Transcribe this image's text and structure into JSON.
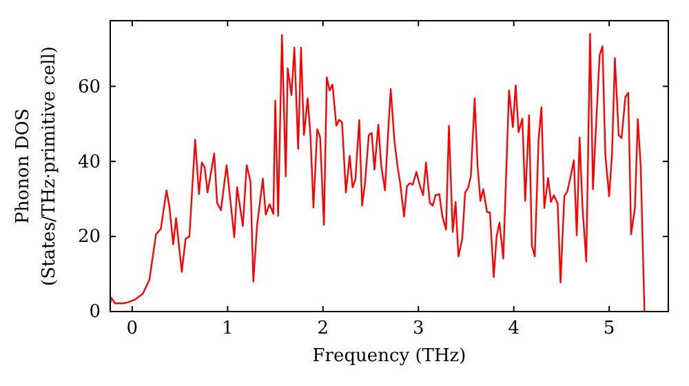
{
  "chart_data": {
    "type": "line",
    "xlabel": "Frequency (THz)",
    "ylabel": "Phonon DOS\n(States/THz·primitive cell)",
    "xlim": [
      -0.23,
      5.62
    ],
    "ylim": [
      0,
      77.5
    ],
    "xticks": [
      0,
      1,
      2,
      3,
      4,
      5
    ],
    "yticks": [
      0,
      20,
      40,
      60
    ],
    "grid": false,
    "marker": "none",
    "line_style": "solid",
    "series": [
      {
        "color": "#ff0000",
        "x": [
          -0.23,
          -0.22,
          -0.18,
          -0.09,
          -0.04,
          0.03,
          0.11,
          0.18,
          0.25,
          0.3,
          0.36,
          0.39,
          0.43,
          0.46,
          0.52,
          0.56,
          0.6,
          0.66,
          0.7,
          0.73,
          0.76,
          0.79,
          0.86,
          0.89,
          0.93,
          0.99,
          1.07,
          1.1,
          1.16,
          1.2,
          1.24,
          1.27,
          1.31,
          1.37,
          1.4,
          1.44,
          1.48,
          1.5,
          1.53,
          1.57,
          1.61,
          1.63,
          1.67,
          1.7,
          1.74,
          1.77,
          1.8,
          1.84,
          1.87,
          1.9,
          1.94,
          1.97,
          2.01,
          2.04,
          2.07,
          2.1,
          2.14,
          2.17,
          2.2,
          2.24,
          2.28,
          2.31,
          2.34,
          2.38,
          2.41,
          2.44,
          2.48,
          2.51,
          2.54,
          2.58,
          2.61,
          2.65,
          2.68,
          2.71,
          2.75,
          2.78,
          2.81,
          2.85,
          2.88,
          2.91,
          2.94,
          2.98,
          3.01,
          3.05,
          3.08,
          3.12,
          3.15,
          3.18,
          3.22,
          3.25,
          3.29,
          3.32,
          3.36,
          3.39,
          3.42,
          3.46,
          3.49,
          3.52,
          3.55,
          3.59,
          3.62,
          3.65,
          3.68,
          3.72,
          3.75,
          3.79,
          3.82,
          3.85,
          3.89,
          3.95,
          3.99,
          4.02,
          4.05,
          4.09,
          4.12,
          4.16,
          4.19,
          4.22,
          4.26,
          4.29,
          4.32,
          4.36,
          4.39,
          4.42,
          4.46,
          4.49,
          4.53,
          4.56,
          4.59,
          4.63,
          4.66,
          4.69,
          4.72,
          4.76,
          4.8,
          4.83,
          4.86,
          4.9,
          4.93,
          4.96,
          5.0,
          5.03,
          5.06,
          5.1,
          5.13,
          5.17,
          5.2,
          5.23,
          5.27,
          5.3,
          5.33,
          5.37
        ],
        "values": [
          2.2,
          3.7,
          2.2,
          2.2,
          2.5,
          3.2,
          4.7,
          8.4,
          20.6,
          22,
          32.3,
          28,
          17.9,
          24.9,
          10.6,
          19.4,
          20,
          45.8,
          31.3,
          39.7,
          38.5,
          31.7,
          42.1,
          29,
          27,
          39,
          19.8,
          33.1,
          22.8,
          39,
          34.7,
          8,
          23.1,
          35.4,
          25.8,
          28.6,
          26,
          56.2,
          25.5,
          73.7,
          36,
          64.8,
          57.7,
          70.3,
          43.4,
          70.3,
          47,
          56.8,
          46.4,
          27.7,
          48.6,
          46.4,
          23.1,
          62.4,
          58.9,
          60.5,
          49.5,
          51.1,
          50.4,
          31.7,
          41.5,
          33.1,
          35.2,
          51,
          28.2,
          34.1,
          47,
          47.6,
          37.8,
          49.8,
          39,
          32.3,
          46.4,
          59.3,
          45.2,
          39,
          34.1,
          25.3,
          33.4,
          34.2,
          33.8,
          37.2,
          34.1,
          31,
          39.7,
          29,
          28.2,
          31,
          31.3,
          25.5,
          21.8,
          49.5,
          21.2,
          29.2,
          14.7,
          19.4,
          31.7,
          32.9,
          36,
          56.8,
          39,
          29.5,
          32.6,
          26.5,
          26.4,
          9.2,
          20,
          23.7,
          14.1,
          58.9,
          49.1,
          60.3,
          47.8,
          51.4,
          29.5,
          52.3,
          17.6,
          14.7,
          45.8,
          54.4,
          27.6,
          35.6,
          29.2,
          31,
          28.8,
          7.7,
          30.8,
          31.9,
          35.3,
          40.3,
          20.3,
          46.4,
          28,
          13.3,
          74,
          32.6,
          48.3,
          68.3,
          70.7,
          41.6,
          30.7,
          42.2,
          67.5,
          47,
          46.2,
          57.2,
          58.3,
          20.6,
          27.5,
          51.3,
          39,
          0
        ]
      }
    ]
  }
}
